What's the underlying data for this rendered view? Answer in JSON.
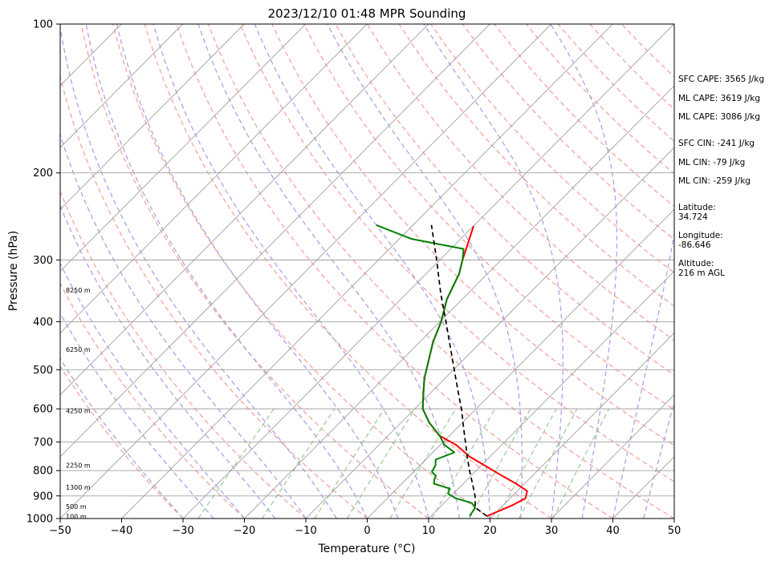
{
  "chart_data": {
    "type": "line",
    "title": "2023/12/10 01:48 MPR Sounding",
    "xlabel": "Temperature (°C)",
    "ylabel": "Pressure (hPa)",
    "xlim": [
      -50,
      50
    ],
    "ylim": [
      1000,
      100
    ],
    "y_scale": "log",
    "x_ticks": [
      "-50",
      "-40",
      "-30",
      "-20",
      "-10",
      "0",
      "10",
      "20",
      "30",
      "40",
      "50"
    ],
    "y_ticks": [
      "1000",
      "900",
      "800",
      "700",
      "600",
      "500",
      "400",
      "300",
      "200",
      "100"
    ],
    "grid": true,
    "series": [
      {
        "color": "#ff0000",
        "points": [
          [
            19.1,
            989
          ],
          [
            21.5,
            940
          ],
          [
            22.5,
            910
          ],
          [
            21.6,
            880
          ],
          [
            18.6,
            850
          ],
          [
            15.1,
            820
          ],
          [
            10.4,
            780
          ],
          [
            6.7,
            750
          ],
          [
            2.6,
            710
          ],
          [
            -1.6,
            680
          ],
          [
            -5.4,
            640
          ],
          [
            -8.7,
            600
          ],
          [
            -11.0,
            560
          ],
          [
            -13.4,
            520
          ],
          [
            -15.5,
            480
          ],
          [
            -17.8,
            440
          ],
          [
            -19.8,
            400
          ],
          [
            -22.5,
            360
          ],
          [
            -24.6,
            320
          ],
          [
            -26.3,
            300
          ],
          [
            -27.9,
            280
          ],
          [
            -30.0,
            256
          ]
        ]
      },
      {
        "color": "#008000",
        "points": [
          [
            16.3,
            989
          ],
          [
            15.8,
            950
          ],
          [
            14.5,
            930
          ],
          [
            11.1,
            910
          ],
          [
            9.1,
            890
          ],
          [
            8.6,
            870
          ],
          [
            5.2,
            850
          ],
          [
            4.5,
            830
          ],
          [
            4.3,
            820
          ],
          [
            3.0,
            805
          ],
          [
            2.5,
            780
          ],
          [
            1.6,
            760
          ],
          [
            3.5,
            735
          ],
          [
            0.7,
            710
          ],
          [
            -1.6,
            680
          ],
          [
            -5.4,
            640
          ],
          [
            -8.7,
            600
          ],
          [
            -11.0,
            560
          ],
          [
            -13.4,
            520
          ],
          [
            -15.5,
            480
          ],
          [
            -17.8,
            440
          ],
          [
            -19.8,
            400
          ],
          [
            -22.5,
            360
          ],
          [
            -24.6,
            320
          ],
          [
            -26.3,
            300
          ],
          [
            -27.9,
            285
          ],
          [
            -38.0,
            272
          ],
          [
            -46.0,
            255
          ]
        ]
      },
      {
        "color": "#000000",
        "style": "dashed",
        "points": [
          [
            19.1,
            989
          ],
          [
            15.8,
            950
          ],
          [
            13.9,
            900
          ],
          [
            11.5,
            850
          ],
          [
            8.9,
            800
          ],
          [
            6.3,
            750
          ],
          [
            3.6,
            700
          ],
          [
            0.7,
            650
          ],
          [
            -2.4,
            600
          ],
          [
            -6.0,
            550
          ],
          [
            -9.9,
            500
          ],
          [
            -14.2,
            450
          ],
          [
            -19.0,
            400
          ],
          [
            -24.5,
            350
          ],
          [
            -30.5,
            300
          ],
          [
            -37.0,
            255
          ]
        ]
      }
    ],
    "height_labels": [
      {
        "p": 345,
        "text": "8250 m"
      },
      {
        "p": 455,
        "text": "6250 m"
      },
      {
        "p": 605,
        "text": "4250 m"
      },
      {
        "p": 780,
        "text": "2250 m"
      },
      {
        "p": 865,
        "text": "1300 m"
      },
      {
        "p": 945,
        "text": "500 m"
      },
      {
        "p": 990,
        "text": "100 m"
      }
    ]
  },
  "annotations": [
    "SFC CAPE: 3565 J/kg",
    "ML CAPE: 3619 J/kg",
    "ML CAPE: 3086 J/kg",
    "SFC CIN: -241 J/kg",
    "ML CIN: -79 J/kg",
    "ML CIN: -259 J/kg",
    "Latitude:",
    "34.724",
    "Longitude:",
    "-86.646",
    "Altitude:",
    "216 m AGL"
  ],
  "colors": {
    "temperature": "#ff0000",
    "dewpoint": "#008000",
    "parcel": "#000000",
    "dry_adiabats": "#f5a3a3",
    "moist_adiabats": "#a9a2ee",
    "mixing_ratio": "#9ccf9c",
    "isotherms": "#a0a0a0"
  }
}
